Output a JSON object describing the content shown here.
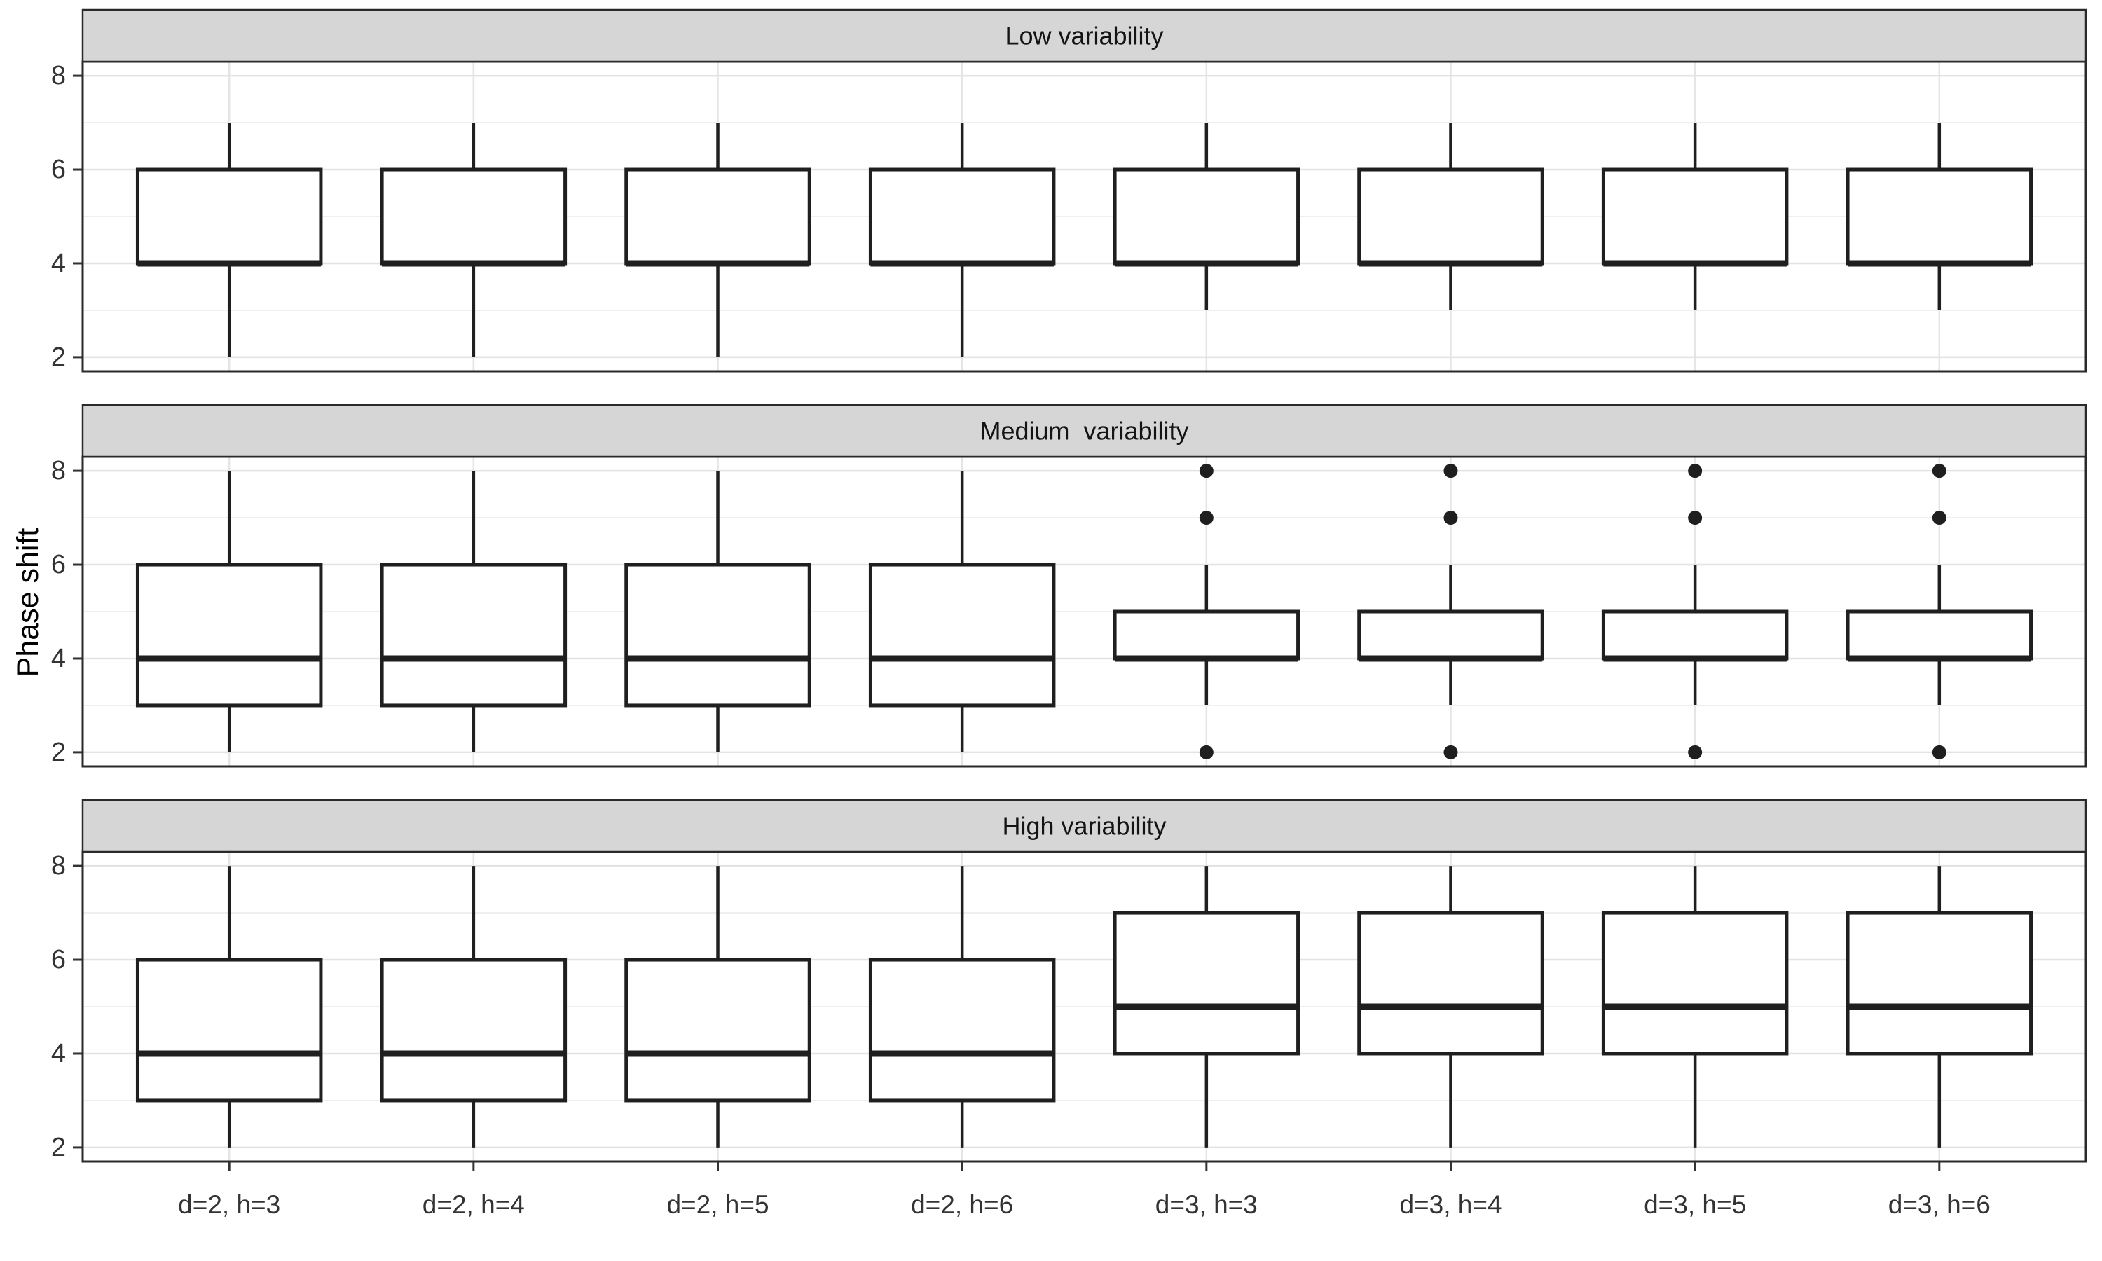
{
  "figure": {
    "ylabel": "Phase shift"
  },
  "chart_data": {
    "type": "boxplot",
    "facet_layout": "rows",
    "ylabel": "Phase shift",
    "xlabel": "",
    "ylim": [
      1.7,
      8.3
    ],
    "y_ticks": [
      2,
      4,
      6,
      8
    ],
    "y_minor_gridlines": [
      3,
      5,
      7
    ],
    "grid": true,
    "legend_position": "none",
    "categories": [
      "d=2, h=3",
      "d=2, h=4",
      "d=2, h=5",
      "d=2, h=6",
      "d=3, h=3",
      "d=3, h=4",
      "d=3, h=5",
      "d=3, h=6"
    ],
    "panels": [
      {
        "title": "Low variability",
        "boxes": [
          {
            "category": "d=2, h=3",
            "min": 2,
            "q1": 4,
            "median": 4,
            "q3": 6,
            "max": 7,
            "outliers": []
          },
          {
            "category": "d=2, h=4",
            "min": 2,
            "q1": 4,
            "median": 4,
            "q3": 6,
            "max": 7,
            "outliers": []
          },
          {
            "category": "d=2, h=5",
            "min": 2,
            "q1": 4,
            "median": 4,
            "q3": 6,
            "max": 7,
            "outliers": []
          },
          {
            "category": "d=2, h=6",
            "min": 2,
            "q1": 4,
            "median": 4,
            "q3": 6,
            "max": 7,
            "outliers": []
          },
          {
            "category": "d=3, h=3",
            "min": 3,
            "q1": 4,
            "median": 4,
            "q3": 6,
            "max": 7,
            "outliers": []
          },
          {
            "category": "d=3, h=4",
            "min": 3,
            "q1": 4,
            "median": 4,
            "q3": 6,
            "max": 7,
            "outliers": []
          },
          {
            "category": "d=3, h=5",
            "min": 3,
            "q1": 4,
            "median": 4,
            "q3": 6,
            "max": 7,
            "outliers": []
          },
          {
            "category": "d=3, h=6",
            "min": 3,
            "q1": 4,
            "median": 4,
            "q3": 6,
            "max": 7,
            "outliers": []
          }
        ]
      },
      {
        "title": "Medium  variability",
        "boxes": [
          {
            "category": "d=2, h=3",
            "min": 2,
            "q1": 3,
            "median": 4,
            "q3": 6,
            "max": 8,
            "outliers": []
          },
          {
            "category": "d=2, h=4",
            "min": 2,
            "q1": 3,
            "median": 4,
            "q3": 6,
            "max": 8,
            "outliers": []
          },
          {
            "category": "d=2, h=5",
            "min": 2,
            "q1": 3,
            "median": 4,
            "q3": 6,
            "max": 8,
            "outliers": []
          },
          {
            "category": "d=2, h=6",
            "min": 2,
            "q1": 3,
            "median": 4,
            "q3": 6,
            "max": 8,
            "outliers": []
          },
          {
            "category": "d=3, h=3",
            "min": 3,
            "q1": 4,
            "median": 4,
            "q3": 5,
            "max": 6,
            "outliers": [
              8,
              7,
              2
            ]
          },
          {
            "category": "d=3, h=4",
            "min": 3,
            "q1": 4,
            "median": 4,
            "q3": 5,
            "max": 6,
            "outliers": [
              8,
              7,
              2
            ]
          },
          {
            "category": "d=3, h=5",
            "min": 3,
            "q1": 4,
            "median": 4,
            "q3": 5,
            "max": 6,
            "outliers": [
              8,
              7,
              2
            ]
          },
          {
            "category": "d=3, h=6",
            "min": 3,
            "q1": 4,
            "median": 4,
            "q3": 5,
            "max": 6,
            "outliers": [
              8,
              7,
              2
            ]
          }
        ]
      },
      {
        "title": "High variability",
        "boxes": [
          {
            "category": "d=2, h=3",
            "min": 2,
            "q1": 3,
            "median": 4,
            "q3": 6,
            "max": 8,
            "outliers": []
          },
          {
            "category": "d=2, h=4",
            "min": 2,
            "q1": 3,
            "median": 4,
            "q3": 6,
            "max": 8,
            "outliers": []
          },
          {
            "category": "d=2, h=5",
            "min": 2,
            "q1": 3,
            "median": 4,
            "q3": 6,
            "max": 8,
            "outliers": []
          },
          {
            "category": "d=2, h=6",
            "min": 2,
            "q1": 3,
            "median": 4,
            "q3": 6,
            "max": 8,
            "outliers": []
          },
          {
            "category": "d=3, h=3",
            "min": 2,
            "q1": 4,
            "median": 5,
            "q3": 7,
            "max": 8,
            "outliers": []
          },
          {
            "category": "d=3, h=4",
            "min": 2,
            "q1": 4,
            "median": 5,
            "q3": 7,
            "max": 8,
            "outliers": []
          },
          {
            "category": "d=3, h=5",
            "min": 2,
            "q1": 4,
            "median": 5,
            "q3": 7,
            "max": 8,
            "outliers": []
          },
          {
            "category": "d=3, h=6",
            "min": 2,
            "q1": 4,
            "median": 5,
            "q3": 7,
            "max": 8,
            "outliers": []
          }
        ]
      }
    ]
  },
  "style": {
    "background": "#FFFFFF",
    "strip_fill": "#D6D6D6",
    "panel_fill": "#FFFFFF",
    "panel_border": "#2A2A2A",
    "box_color": "#1F1F1F",
    "grid_major": "#E3E3E3",
    "grid_minor": "#EFEFEF",
    "grid_vertical": "#E5E5E5",
    "tick_color": "#333333"
  }
}
